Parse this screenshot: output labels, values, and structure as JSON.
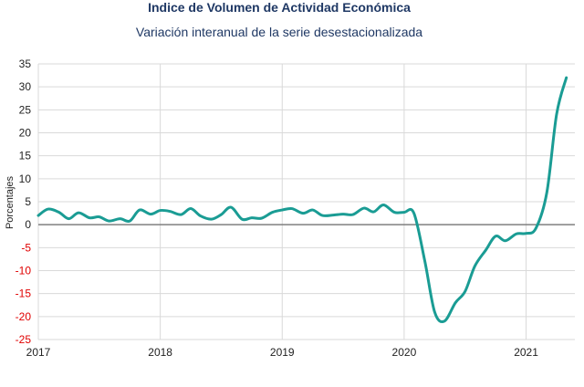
{
  "chart_data": {
    "type": "line",
    "title": "Indice de Volumen de  Actividad Económica",
    "subtitle": "Variación interanual de la serie desestacionalizada",
    "ylabel": "Porcentajes",
    "xlabel": "",
    "ylim": [
      -25,
      35
    ],
    "yticks": [
      35,
      30,
      25,
      20,
      15,
      10,
      5,
      0,
      -5,
      -10,
      -15,
      -20,
      -25
    ],
    "xlim": [
      2017.0,
      2021.4
    ],
    "xticks": [
      {
        "value": 2017,
        "label": "2017"
      },
      {
        "value": 2018,
        "label": "2018"
      },
      {
        "value": 2019,
        "label": "2019"
      },
      {
        "value": 2020,
        "label": "2020"
      },
      {
        "value": 2021,
        "label": "2021"
      }
    ],
    "grid": true,
    "legend": "none",
    "colors": {
      "line": "#1a9c94",
      "grid": "#d9d9d9",
      "zero_line": "#7f7f7f",
      "positive_tick": "#222222",
      "negative_tick": "#e00000",
      "title": "#1f3864"
    },
    "series": [
      {
        "x": [
          2017.0,
          2017.08,
          2017.17,
          2017.25,
          2017.33,
          2017.42,
          2017.5,
          2017.58,
          2017.67,
          2017.75,
          2017.83,
          2017.92,
          2018.0,
          2018.08,
          2018.17,
          2018.25,
          2018.33,
          2018.42,
          2018.5,
          2018.58,
          2018.67,
          2018.75,
          2018.83,
          2018.92,
          2019.0,
          2019.08,
          2019.17,
          2019.25,
          2019.33,
          2019.42,
          2019.5,
          2019.58,
          2019.67,
          2019.75,
          2019.83,
          2019.92,
          2020.0,
          2020.08,
          2020.17,
          2020.25,
          2020.33,
          2020.42,
          2020.5,
          2020.58,
          2020.67,
          2020.75,
          2020.83,
          2020.92,
          2021.0,
          2021.08,
          2021.17,
          2021.25,
          2021.33
        ],
        "values": [
          2.0,
          3.4,
          2.7,
          1.3,
          2.6,
          1.5,
          1.7,
          0.8,
          1.3,
          0.8,
          3.2,
          2.3,
          3.1,
          2.9,
          2.2,
          3.5,
          1.9,
          1.2,
          2.2,
          3.8,
          1.2,
          1.5,
          1.4,
          2.7,
          3.2,
          3.5,
          2.5,
          3.2,
          2.0,
          2.1,
          2.3,
          2.2,
          3.6,
          2.8,
          4.3,
          2.7,
          2.7,
          2.5,
          -8.0,
          -19.0,
          -21.0,
          -17.0,
          -14.5,
          -9.0,
          -5.5,
          -2.5,
          -3.5,
          -2.0,
          -1.9,
          -0.8,
          7.0,
          24.0,
          32.0
        ]
      }
    ]
  }
}
